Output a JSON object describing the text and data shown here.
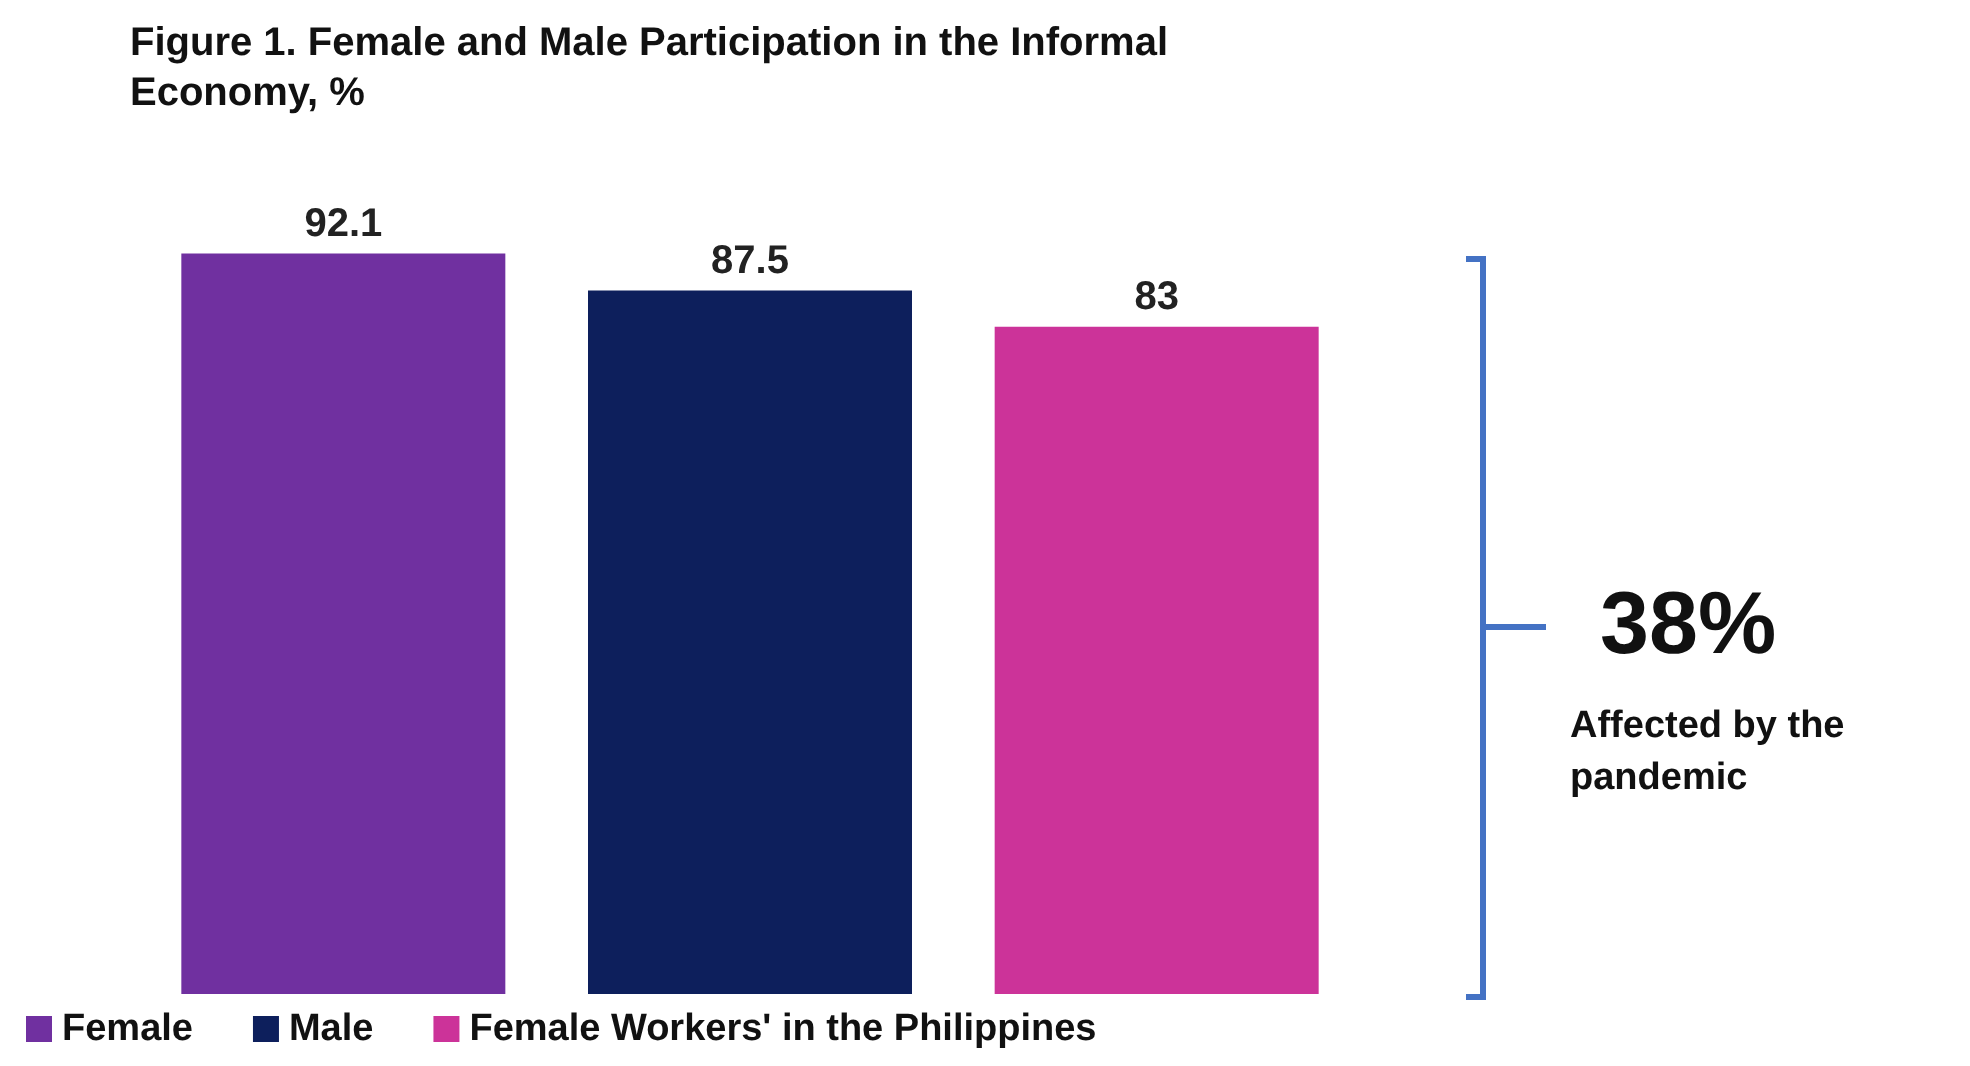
{
  "chart_data": {
    "type": "bar",
    "title": "Figure 1. Female and Male Participation in the Informal Economy, %",
    "categories": [
      null,
      null,
      null
    ],
    "series": [
      {
        "name": "Female",
        "color": "#7030a0",
        "values": [
          92.1,
          null,
          null
        ]
      },
      {
        "name": "Male",
        "color": "#0d1f5c",
        "values": [
          null,
          87.5,
          null
        ]
      },
      {
        "name": "Female Workers' in the Philippines",
        "color": "#cc3399",
        "values": [
          null,
          null,
          83
        ]
      }
    ],
    "stacked": true,
    "data_labels": true,
    "legend": "bottom left",
    "annotations": [
      "38%",
      "Affected by the pandemic"
    ]
  }
}
